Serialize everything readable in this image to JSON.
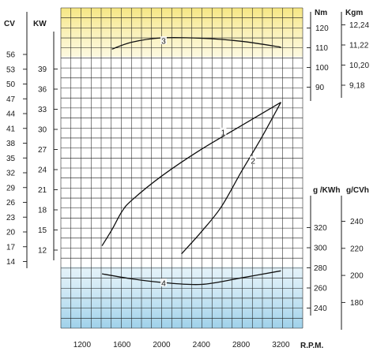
{
  "chart_data": {
    "type": "line",
    "xlabel": "R.P.M.",
    "x_ticks": [
      "1200",
      "1600",
      "2000",
      "2400",
      "2800",
      "3200"
    ],
    "xlim": [
      800,
      3300
    ],
    "grid": true,
    "axes": {
      "cv": {
        "title": "CV",
        "ticks": [
          "56",
          "53",
          "50",
          "47",
          "44",
          "41",
          "38",
          "35",
          "32",
          "29",
          "26",
          "23",
          "20",
          "17",
          "14"
        ]
      },
      "kw": {
        "title": "KW",
        "ticks": [
          "39",
          "36",
          "33",
          "30",
          "27",
          "24",
          "21",
          "18",
          "15",
          "12"
        ]
      },
      "nm": {
        "title": "Nm",
        "ticks": [
          "120",
          "110",
          "100",
          "90"
        ]
      },
      "kgm": {
        "title": "Kgm",
        "ticks": [
          "12,24",
          "11,22",
          "10,20",
          "9,18"
        ]
      },
      "gkwh": {
        "title": "g /KWh",
        "ticks": [
          "320",
          "300",
          "280",
          "260",
          "240"
        ]
      },
      "gcvh": {
        "title": "g/CVh",
        "ticks": [
          "240",
          "220",
          "200",
          "180"
        ]
      }
    },
    "series": [
      {
        "name": "1",
        "axis": "kw",
        "x": [
          1400,
          1500,
          1600,
          1700,
          2000,
          2400,
          2800,
          3200
        ],
        "y": [
          12.4,
          14.8,
          17.5,
          19.2,
          22.8,
          26.8,
          30.3,
          33.8
        ]
      },
      {
        "name": "2",
        "axis": "kw",
        "x": [
          2200,
          2400,
          2600,
          2800,
          3000,
          3200
        ],
        "y": [
          11.2,
          14.5,
          18.2,
          23.4,
          28.4,
          33.8
        ]
      },
      {
        "name": "3",
        "axis": "nm",
        "x": [
          1500,
          1700,
          2000,
          2400,
          2800,
          3200
        ],
        "y": [
          109.3,
          112.8,
          115,
          114.8,
          113.3,
          110.3
        ]
      },
      {
        "name": "4",
        "axis": "gkwh",
        "x": [
          1400,
          1700,
          2000,
          2400,
          2800,
          3200
        ],
        "y": [
          274,
          269,
          265.5,
          263.5,
          270,
          277
        ]
      }
    ]
  },
  "colors": {
    "grid": "#1a1a1a",
    "curve": "#111111",
    "top_band": "#f8ec96",
    "bottom_band": "#a9d6ec",
    "text": "#1a1a1a"
  }
}
